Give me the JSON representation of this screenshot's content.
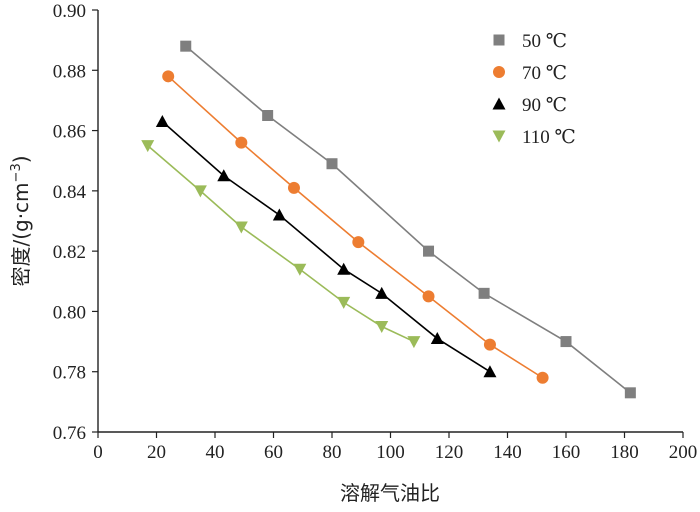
{
  "chart_data": {
    "type": "line",
    "title": "",
    "xlabel": "溶解气油比",
    "ylabel": "密度/(g·cm",
    "ylabel_superscript": "−3",
    "ylabel_close": ")",
    "xlim": [
      0,
      200
    ],
    "ylim": [
      0.76,
      0.9
    ],
    "xticks": [
      "0",
      "20",
      "40",
      "60",
      "80",
      "100",
      "120",
      "140",
      "160",
      "180",
      "200"
    ],
    "yticks": [
      "0.76",
      "0.78",
      "0.80",
      "0.82",
      "0.84",
      "0.86",
      "0.88",
      "0.90"
    ],
    "grid": false,
    "legend_position": "top-right",
    "series": [
      {
        "name": "50 ℃",
        "marker": "square",
        "color": "#7f7f7f",
        "x": [
          30,
          58,
          80,
          113,
          132,
          160,
          182
        ],
        "y": [
          0.888,
          0.865,
          0.849,
          0.82,
          0.806,
          0.79,
          0.773
        ]
      },
      {
        "name": "70 ℃",
        "marker": "circle",
        "color": "#ed7d31",
        "x": [
          24,
          49,
          67,
          89,
          113,
          134,
          152
        ],
        "y": [
          0.878,
          0.856,
          0.841,
          0.823,
          0.805,
          0.789,
          0.778
        ]
      },
      {
        "name": "90 ℃",
        "marker": "triangle-up",
        "color": "#000000",
        "x": [
          22,
          43,
          62,
          84,
          97,
          116,
          134
        ],
        "y": [
          0.863,
          0.845,
          0.832,
          0.814,
          0.806,
          0.791,
          0.78
        ]
      },
      {
        "name": "110 ℃",
        "marker": "triangle-down",
        "color": "#9bbb59",
        "x": [
          17,
          35,
          49,
          69,
          84,
          97,
          108
        ],
        "y": [
          0.855,
          0.84,
          0.828,
          0.814,
          0.803,
          0.795,
          0.79
        ]
      }
    ]
  }
}
